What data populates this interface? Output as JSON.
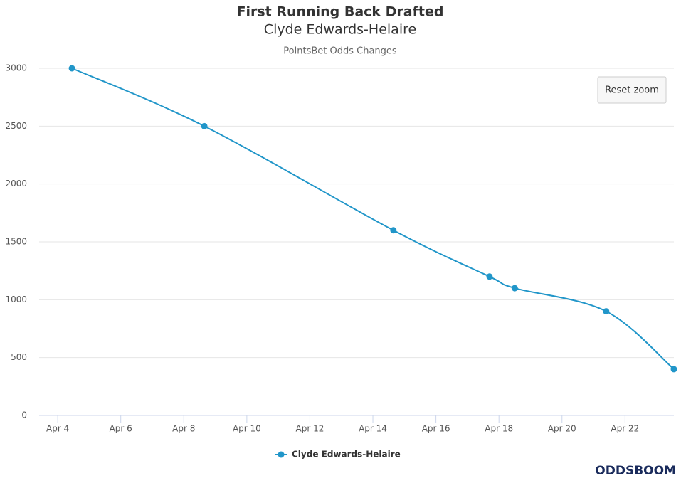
{
  "chart_data": {
    "type": "line",
    "title": "First Running Back Drafted",
    "subtitle": "Clyde Edwards-Helaire",
    "caption": "PointsBet Odds Changes",
    "x": [
      4.45,
      8.65,
      14.65,
      17.7,
      18.5,
      21.4,
      23.55
    ],
    "series": [
      {
        "name": "Clyde Edwards-Helaire",
        "color": "#2196c9",
        "values": [
          3000,
          2500,
          1600,
          1200,
          1100,
          900,
          400
        ]
      }
    ],
    "xlim": [
      3.41,
      23.55
    ],
    "xticks": [
      {
        "value": 4,
        "label": "Apr 4"
      },
      {
        "value": 6,
        "label": "Apr 6"
      },
      {
        "value": 8,
        "label": "Apr 8"
      },
      {
        "value": 10,
        "label": "Apr 10"
      },
      {
        "value": 12,
        "label": "Apr 12"
      },
      {
        "value": 14,
        "label": "Apr 14"
      },
      {
        "value": 16,
        "label": "Apr 16"
      },
      {
        "value": 18,
        "label": "Apr 18"
      },
      {
        "value": 20,
        "label": "Apr 20"
      },
      {
        "value": 22,
        "label": "Apr 22"
      }
    ],
    "ylim": [
      0,
      3000
    ],
    "yticks": [
      0,
      500,
      1000,
      1500,
      2000,
      2500,
      3000
    ],
    "grid": true,
    "legend": "bottom"
  },
  "ui": {
    "reset_zoom": "Reset zoom",
    "watermark": "ODDSBOOM"
  }
}
